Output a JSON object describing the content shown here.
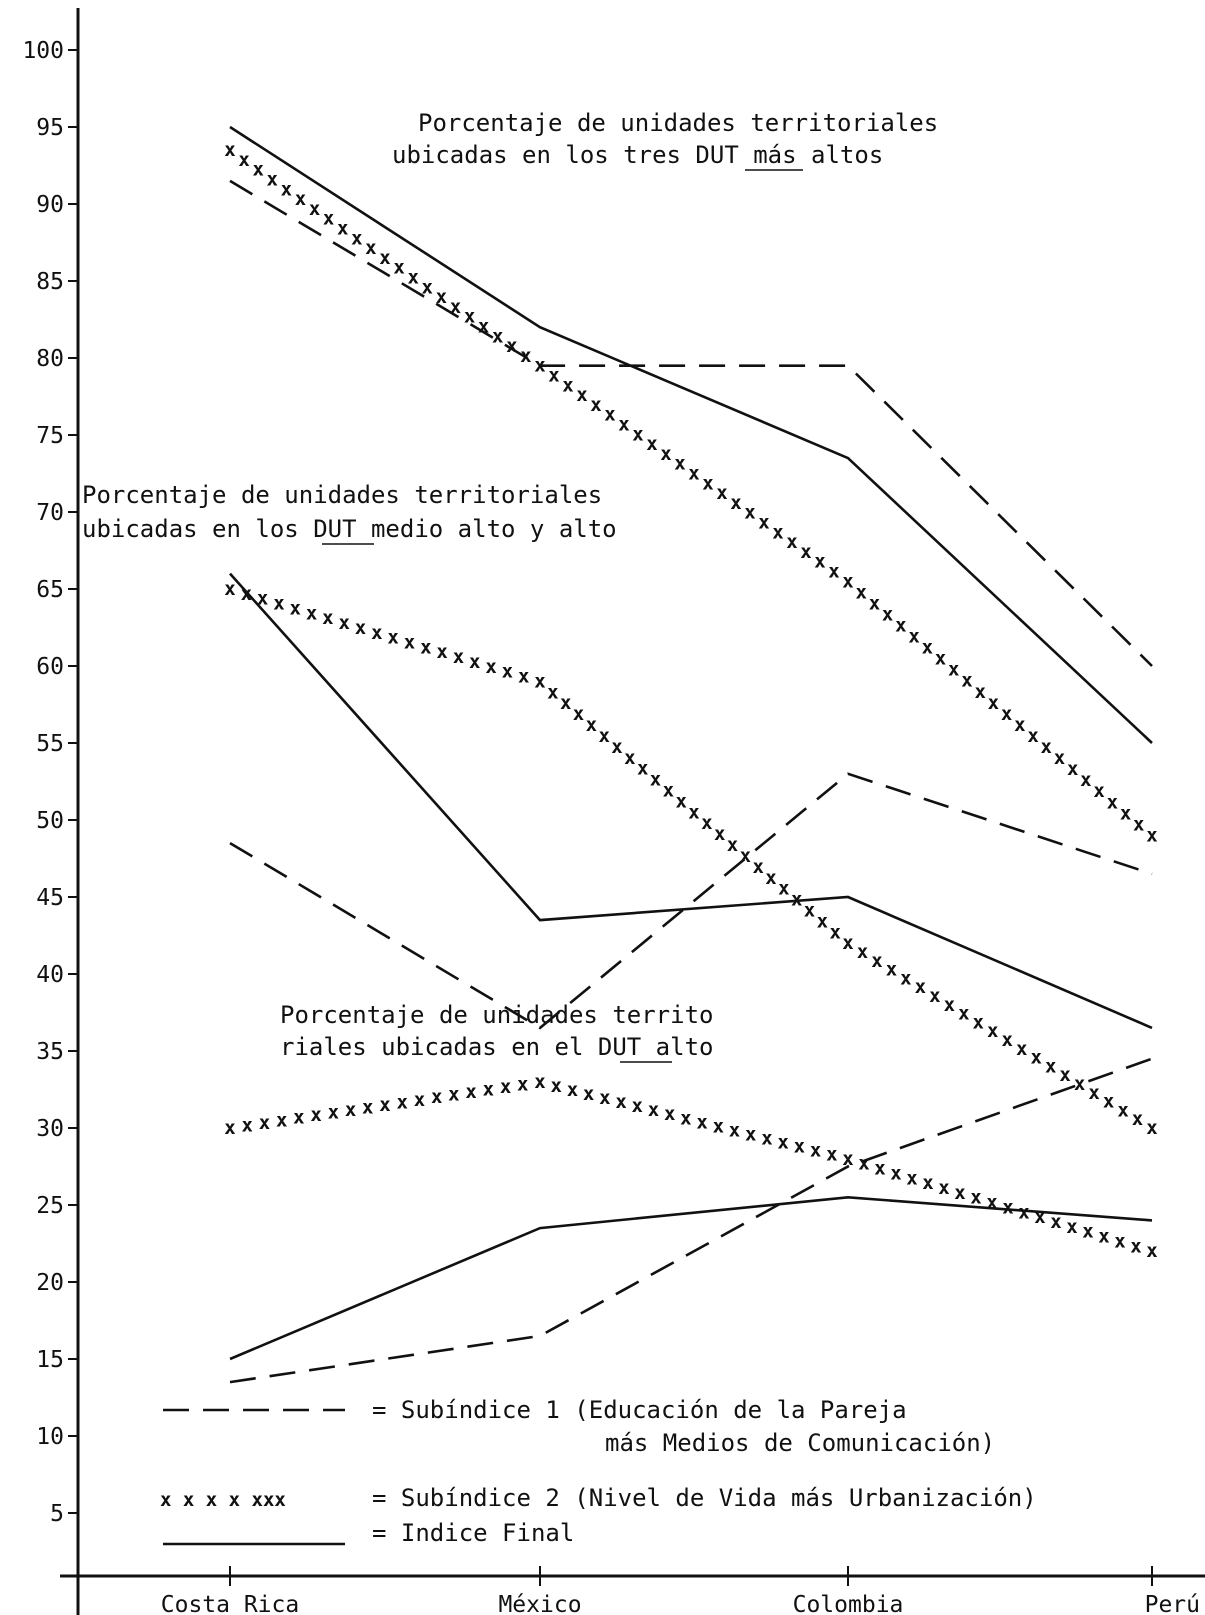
{
  "chart_data": {
    "type": "line",
    "categories": [
      "Costa Rica",
      "México",
      "Colombia",
      "Perú"
    ],
    "ylim": [
      0,
      100
    ],
    "yticks": [
      5,
      10,
      15,
      20,
      25,
      30,
      35,
      40,
      45,
      50,
      55,
      60,
      65,
      70,
      75,
      80,
      85,
      90,
      95,
      100
    ],
    "grid": false,
    "annotations": [
      {
        "lines": [
          "Porcentaje de unidades territoriales",
          "ubicadas en los tres DUT más altos"
        ],
        "underline": "DUT"
      },
      {
        "lines": [
          "Porcentaje de unidades territoriales",
          "ubicadas en los DUT medio alto y alto"
        ],
        "underline": "DUT"
      },
      {
        "lines": [
          "Porcentaje de unidades territo",
          "riales ubicadas en el DUT alto"
        ],
        "underline": "DUT"
      }
    ],
    "series": [
      {
        "group": "tres DUT más altos",
        "style": "dashed",
        "values": [
          91.5,
          79.5,
          79.5,
          60
        ]
      },
      {
        "group": "tres DUT más altos",
        "style": "crosses",
        "values": [
          93.5,
          79.5,
          65.5,
          49
        ]
      },
      {
        "group": "tres DUT más altos",
        "style": "solid",
        "values": [
          95,
          82,
          73.5,
          55
        ]
      },
      {
        "group": "DUT medio alto y alto",
        "style": "dashed",
        "values": [
          48.5,
          36.5,
          53,
          46.5
        ]
      },
      {
        "group": "DUT medio alto y alto",
        "style": "crosses",
        "values": [
          65,
          59,
          42,
          30
        ]
      },
      {
        "group": "DUT medio alto y alto",
        "style": "solid",
        "values": [
          66,
          43.5,
          45,
          36.5
        ]
      },
      {
        "group": "DUT alto",
        "style": "dashed",
        "values": [
          13.5,
          16.5,
          27.5,
          34.5
        ]
      },
      {
        "group": "DUT alto",
        "style": "crosses",
        "values": [
          30,
          33,
          28,
          22
        ]
      },
      {
        "group": "DUT alto",
        "style": "solid",
        "values": [
          15,
          23.5,
          25.5,
          24
        ]
      }
    ],
    "legend": {
      "placement": "bottom-left",
      "entries": [
        {
          "style": "dashed",
          "sample": "— — — — —",
          "label": "= Subíndice 1 (Educación de la Pareja",
          "label2": "más Medios de Comunicación)"
        },
        {
          "style": "crosses",
          "sample": "x x x x xxx",
          "label": "= Subíndice 2 (Nivel de Vida más Urbanización)"
        },
        {
          "style": "solid",
          "sample": "",
          "label": "= Indice Final"
        }
      ]
    }
  }
}
